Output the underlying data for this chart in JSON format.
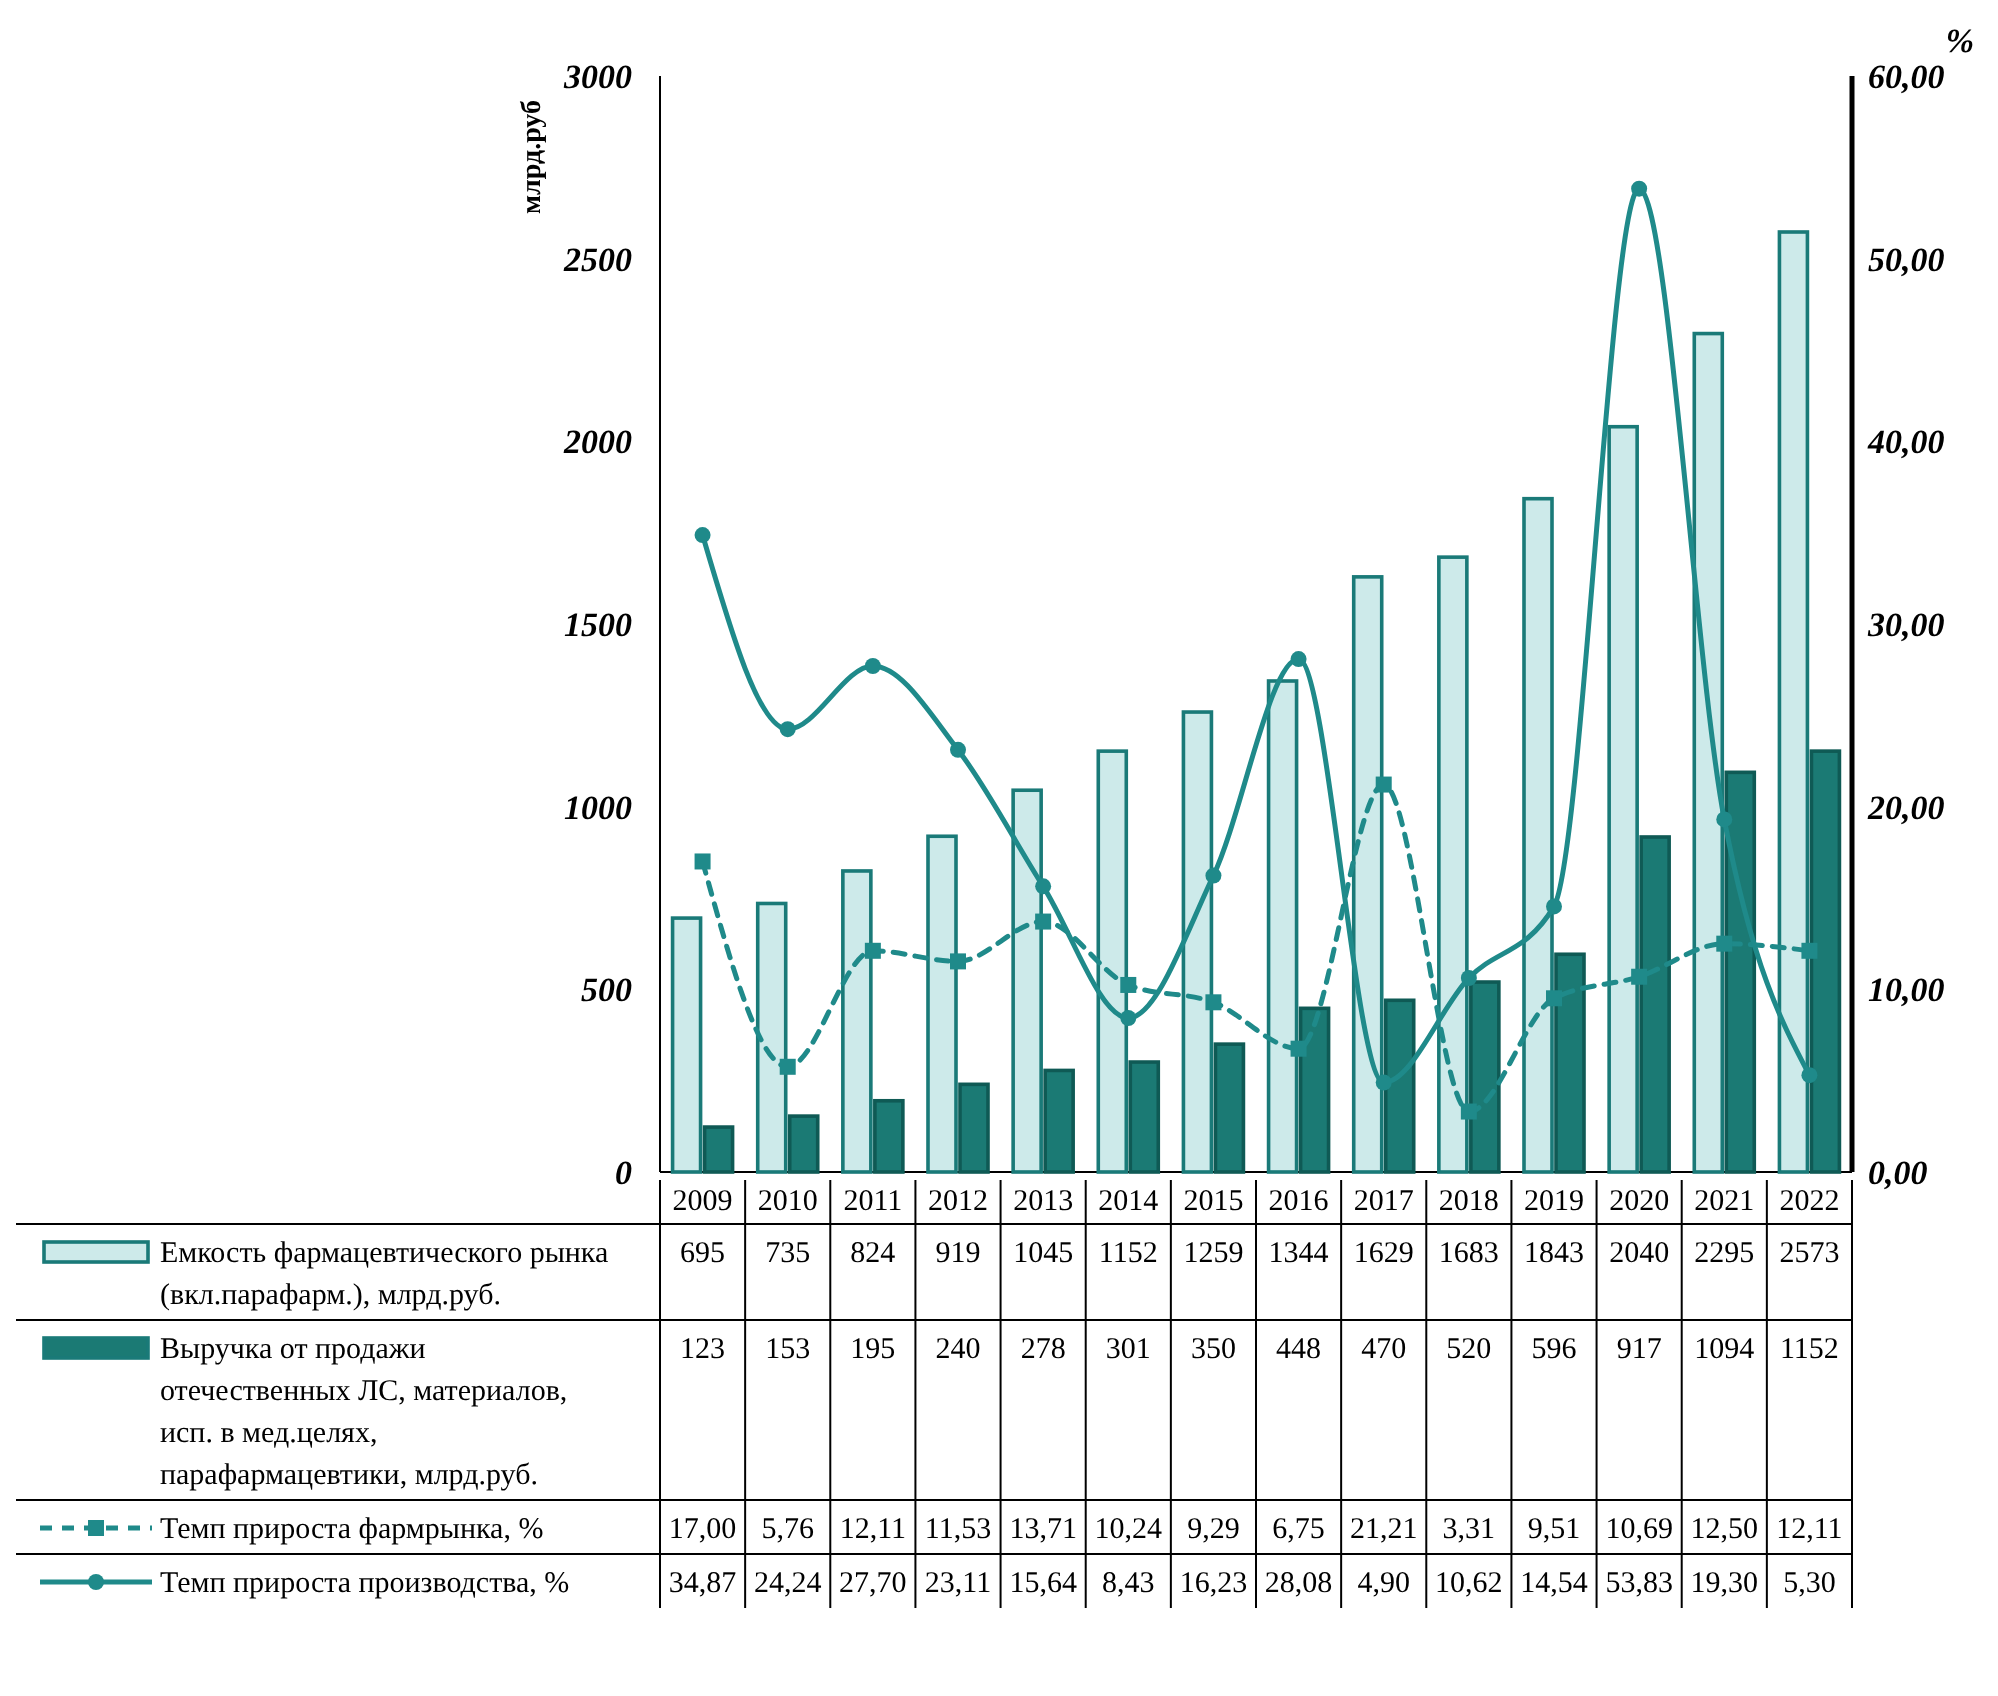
{
  "chart_data": {
    "type": "bar",
    "ylabel": "млрд.руб",
    "y2label": "%",
    "categories": [
      "2009",
      "2010",
      "2011",
      "2012",
      "2013",
      "2014",
      "2015",
      "2016",
      "2017",
      "2018",
      "2019",
      "2020",
      "2021",
      "2022"
    ],
    "ylim": [
      0,
      3000
    ],
    "yticks": [
      0,
      500,
      1000,
      1500,
      2000,
      2500,
      3000
    ],
    "y2lim": [
      0,
      60
    ],
    "y2ticks": [
      {
        "value": 0,
        "label": "0,00"
      },
      {
        "value": 10,
        "label": "10,00"
      },
      {
        "value": 20,
        "label": "20,00"
      },
      {
        "value": 30,
        "label": "30,00"
      },
      {
        "value": 40,
        "label": "40,00"
      },
      {
        "value": 50,
        "label": "50,00"
      },
      {
        "value": 60,
        "label": "60,00"
      }
    ],
    "legend": "bottom",
    "grid": false,
    "series": [
      {
        "name": "Емкость фармацевтического рынка (вкл.парафарм.), млрд.руб.",
        "color": "#cdeaea",
        "values": [
          695,
          735,
          824,
          919,
          1045,
          1152,
          1259,
          1344,
          1629,
          1683,
          1843,
          2040,
          2295,
          2573
        ],
        "value_labels": [
          "695",
          "735",
          "824",
          "919",
          "1045",
          "1152",
          "1259",
          "1344",
          "1629",
          "1683",
          "1843",
          "2040",
          "2295",
          "2573"
        ]
      },
      {
        "name": "Выручка от продажи отечественных ЛС, материалов, исп. в мед.целях, парафармацевтики, млрд.руб.",
        "color": "#1b7a74",
        "values": [
          123,
          153,
          195,
          240,
          278,
          301,
          350,
          448,
          470,
          520,
          596,
          917,
          1094,
          1152
        ],
        "value_labels": [
          "123",
          "153",
          "195",
          "240",
          "278",
          "301",
          "350",
          "448",
          "470",
          "520",
          "596",
          "917",
          "1094",
          "1152"
        ]
      },
      {
        "name": "Темп прироста фармрынка, %",
        "type": "line",
        "axis": "y2",
        "color": "#1f8a8a",
        "marker": "square",
        "line_style": "dashed",
        "values": [
          17.0,
          5.76,
          12.11,
          11.53,
          13.71,
          10.24,
          9.29,
          6.75,
          21.21,
          3.31,
          9.51,
          10.69,
          12.5,
          12.11
        ],
        "value_labels": [
          "17,00",
          "5,76",
          "12,11",
          "11,53",
          "13,71",
          "10,24",
          "9,29",
          "6,75",
          "21,21",
          "3,31",
          "9,51",
          "10,69",
          "12,50",
          "12,11"
        ]
      },
      {
        "name": "Темп прироста производства, %",
        "type": "line",
        "axis": "y2",
        "color": "#1f8a8a",
        "marker": "circle",
        "line_style": "solid",
        "values": [
          34.87,
          24.24,
          27.7,
          23.11,
          15.64,
          8.43,
          16.23,
          28.08,
          4.9,
          10.62,
          14.54,
          53.83,
          19.3,
          5.3
        ],
        "value_labels": [
          "34,87",
          "24,24",
          "27,70",
          "23,11",
          "15,64",
          "8,43",
          "16,23",
          "28,08",
          "4,90",
          "10,62",
          "14,54",
          "53,83",
          "19,30",
          "5,30"
        ]
      }
    ]
  }
}
